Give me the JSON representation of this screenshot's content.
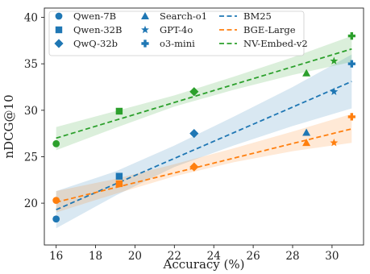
{
  "chart_data": {
    "type": "scatter",
    "title": "",
    "xlabel": "Accuracy (%)",
    "ylabel": "nDCG@10",
    "xlim": [
      15.4,
      31.6
    ],
    "ylim": [
      15.5,
      41
    ],
    "xticks": [
      16,
      18,
      20,
      22,
      24,
      26,
      28,
      30
    ],
    "yticks": [
      20,
      25,
      30,
      35,
      40
    ],
    "grid": false,
    "legend_position": "top-left",
    "colors": {
      "BM25": "#1f77b4",
      "BGE-Large": "#ff7f0e",
      "NV-Embed-v2": "#2ca02c"
    },
    "model_markers": [
      {
        "name": "Qwen-7B",
        "marker": "circle"
      },
      {
        "name": "Qwen-32B",
        "marker": "square"
      },
      {
        "name": "QwQ-32b",
        "marker": "diamond"
      },
      {
        "name": "Search-o1",
        "marker": "triangle"
      },
      {
        "name": "GPT-4o",
        "marker": "star"
      },
      {
        "name": "o3-mini",
        "marker": "plus"
      }
    ],
    "series": [
      {
        "name": "BM25",
        "points": [
          {
            "model": "Qwen-7B",
            "x": 16.0,
            "y": 18.3
          },
          {
            "model": "Qwen-32B",
            "x": 19.2,
            "y": 22.9
          },
          {
            "model": "QwQ-32b",
            "x": 23.0,
            "y": 27.5
          },
          {
            "model": "Search-o1",
            "x": 28.7,
            "y": 27.6
          },
          {
            "model": "GPT-4o",
            "x": 30.1,
            "y": 32.0
          },
          {
            "model": "o3-mini",
            "x": 31.0,
            "y": 35.0
          }
        ],
        "fit": {
          "x": [
            16.0,
            31.0
          ],
          "y": [
            19.3,
            33.1
          ]
        },
        "ci": {
          "x": [
            16.0,
            19.0,
            22.0,
            25.0,
            28.0,
            31.0
          ],
          "lower": [
            17.3,
            20.8,
            23.9,
            26.2,
            28.3,
            30.2
          ],
          "upper": [
            21.3,
            23.4,
            26.2,
            29.3,
            32.5,
            36.0
          ]
        }
      },
      {
        "name": "BGE-Large",
        "points": [
          {
            "model": "Qwen-7B",
            "x": 16.0,
            "y": 20.3
          },
          {
            "model": "Qwen-32B",
            "x": 19.2,
            "y": 22.1
          },
          {
            "model": "QwQ-32b",
            "x": 23.0,
            "y": 23.9
          },
          {
            "model": "Search-o1",
            "x": 28.7,
            "y": 26.5
          },
          {
            "model": "GPT-4o",
            "x": 30.1,
            "y": 26.5
          },
          {
            "model": "o3-mini",
            "x": 31.0,
            "y": 29.3
          }
        ],
        "fit": {
          "x": [
            16.0,
            31.0
          ],
          "y": [
            20.1,
            28.0
          ]
        },
        "ci": {
          "x": [
            16.0,
            19.0,
            22.0,
            25.0,
            28.0,
            31.0
          ],
          "lower": [
            19.0,
            21.0,
            22.9,
            24.4,
            25.6,
            26.5
          ],
          "upper": [
            21.3,
            22.6,
            24.2,
            25.9,
            27.7,
            29.6
          ]
        }
      },
      {
        "name": "NV-Embed-v2",
        "points": [
          {
            "model": "Qwen-7B",
            "x": 16.0,
            "y": 26.4
          },
          {
            "model": "Qwen-32B",
            "x": 19.2,
            "y": 29.9
          },
          {
            "model": "QwQ-32b",
            "x": 23.0,
            "y": 32.0
          },
          {
            "model": "Search-o1",
            "x": 28.7,
            "y": 34.0
          },
          {
            "model": "GPT-4o",
            "x": 30.1,
            "y": 35.3
          },
          {
            "model": "o3-mini",
            "x": 31.0,
            "y": 38.0
          }
        ],
        "fit": {
          "x": [
            16.0,
            31.0
          ],
          "y": [
            27.0,
            36.6
          ]
        },
        "ci": {
          "x": [
            16.0,
            19.0,
            22.0,
            25.0,
            28.0,
            31.0
          ],
          "lower": [
            25.7,
            28.1,
            30.4,
            32.2,
            33.8,
            35.2
          ],
          "upper": [
            28.2,
            29.9,
            31.6,
            33.6,
            35.7,
            38.0
          ]
        }
      }
    ]
  }
}
